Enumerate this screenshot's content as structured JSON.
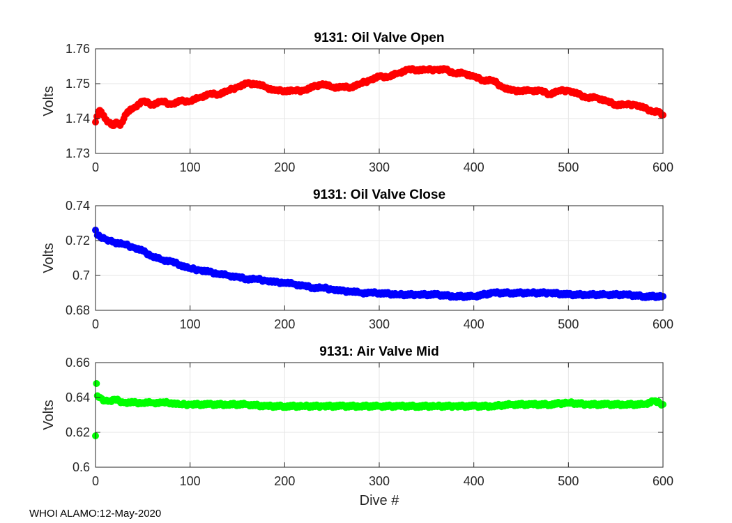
{
  "footer": "WHOI ALAMO:12-May-2020",
  "chart_data": [
    {
      "type": "scatter",
      "title": "9131: Oil Valve Open",
      "xlabel": "",
      "ylabel": "Volts",
      "xlim": [
        0,
        600
      ],
      "ylim": [
        1.73,
        1.76
      ],
      "xticks": [
        0,
        100,
        200,
        300,
        400,
        500,
        600
      ],
      "yticks": [
        1.73,
        1.74,
        1.75,
        1.76
      ],
      "ytick_labels": [
        "1.73",
        "1.74",
        "1.75",
        "1.76"
      ],
      "grid": true,
      "color": "#ff0000",
      "series": [
        {
          "name": "Oil Valve Open",
          "x": [
            0,
            3,
            6,
            10,
            14,
            18,
            22,
            26,
            30,
            34,
            40,
            50,
            60,
            70,
            80,
            90,
            100,
            110,
            120,
            130,
            140,
            150,
            160,
            170,
            180,
            190,
            200,
            210,
            220,
            230,
            240,
            250,
            260,
            270,
            280,
            290,
            300,
            310,
            320,
            330,
            340,
            350,
            360,
            370,
            380,
            390,
            400,
            410,
            420,
            430,
            440,
            450,
            460,
            470,
            480,
            490,
            500,
            510,
            520,
            530,
            540,
            550,
            560,
            570,
            580,
            590,
            596,
            600
          ],
          "y": [
            1.739,
            1.742,
            1.742,
            1.74,
            1.739,
            1.738,
            1.739,
            1.738,
            1.74,
            1.742,
            1.743,
            1.745,
            1.744,
            1.745,
            1.744,
            1.745,
            1.745,
            1.746,
            1.747,
            1.747,
            1.748,
            1.749,
            1.75,
            1.75,
            1.749,
            1.748,
            1.748,
            1.748,
            1.748,
            1.749,
            1.75,
            1.749,
            1.749,
            1.749,
            1.75,
            1.751,
            1.752,
            1.752,
            1.753,
            1.754,
            1.754,
            1.754,
            1.754,
            1.754,
            1.753,
            1.753,
            1.752,
            1.751,
            1.751,
            1.749,
            1.748,
            1.748,
            1.748,
            1.748,
            1.747,
            1.748,
            1.748,
            1.747,
            1.746,
            1.746,
            1.745,
            1.744,
            1.744,
            1.744,
            1.743,
            1.742,
            1.742,
            1.741
          ]
        }
      ]
    },
    {
      "type": "scatter",
      "title": "9131: Oil Valve Close",
      "xlabel": "",
      "ylabel": "Volts",
      "xlim": [
        0,
        600
      ],
      "ylim": [
        0.68,
        0.74
      ],
      "xticks": [
        0,
        100,
        200,
        300,
        400,
        500,
        600
      ],
      "yticks": [
        0.68,
        0.7,
        0.72,
        0.74
      ],
      "ytick_labels": [
        "0.68",
        "0.7",
        "0.72",
        "0.74"
      ],
      "grid": true,
      "color": "#0000ff",
      "series": [
        {
          "name": "Oil Valve Close",
          "x": [
            0,
            2,
            5,
            10,
            15,
            20,
            30,
            40,
            50,
            60,
            70,
            80,
            90,
            100,
            110,
            120,
            130,
            140,
            150,
            160,
            170,
            180,
            190,
            200,
            210,
            220,
            230,
            240,
            250,
            260,
            270,
            280,
            290,
            300,
            320,
            340,
            360,
            380,
            400,
            420,
            440,
            460,
            480,
            500,
            520,
            540,
            560,
            580,
            600
          ],
          "y": [
            0.726,
            0.723,
            0.722,
            0.721,
            0.72,
            0.719,
            0.718,
            0.716,
            0.714,
            0.711,
            0.709,
            0.708,
            0.706,
            0.704,
            0.703,
            0.702,
            0.701,
            0.7,
            0.699,
            0.698,
            0.698,
            0.697,
            0.696,
            0.696,
            0.695,
            0.694,
            0.693,
            0.693,
            0.692,
            0.691,
            0.691,
            0.69,
            0.69,
            0.69,
            0.689,
            0.689,
            0.689,
            0.688,
            0.688,
            0.69,
            0.69,
            0.69,
            0.69,
            0.689,
            0.689,
            0.689,
            0.689,
            0.688,
            0.688
          ]
        }
      ]
    },
    {
      "type": "scatter",
      "title": "9131: Air Valve Mid",
      "xlabel": "Dive #",
      "ylabel": "Volts",
      "xlim": [
        0,
        600
      ],
      "ylim": [
        0.6,
        0.66
      ],
      "xticks": [
        0,
        100,
        200,
        300,
        400,
        500,
        600
      ],
      "yticks": [
        0.6,
        0.62,
        0.64,
        0.66
      ],
      "ytick_labels": [
        "0.6",
        "0.62",
        "0.64",
        "0.66"
      ],
      "grid": true,
      "color": "#00ff00",
      "series": [
        {
          "name": "Air Valve Mid",
          "x": [
            0,
            1,
            2,
            5,
            10,
            15,
            20,
            30,
            40,
            50,
            60,
            70,
            80,
            90,
            100,
            120,
            140,
            160,
            180,
            200,
            220,
            240,
            260,
            280,
            300,
            320,
            340,
            360,
            380,
            400,
            420,
            440,
            460,
            480,
            500,
            520,
            540,
            560,
            580,
            590,
            600
          ],
          "y": [
            0.618,
            0.648,
            0.641,
            0.64,
            0.638,
            0.638,
            0.639,
            0.637,
            0.637,
            0.637,
            0.637,
            0.637,
            0.637,
            0.636,
            0.636,
            0.636,
            0.636,
            0.636,
            0.635,
            0.635,
            0.635,
            0.635,
            0.635,
            0.635,
            0.635,
            0.635,
            0.635,
            0.635,
            0.635,
            0.635,
            0.635,
            0.636,
            0.636,
            0.636,
            0.637,
            0.636,
            0.636,
            0.636,
            0.636,
            0.638,
            0.636
          ]
        }
      ]
    }
  ]
}
